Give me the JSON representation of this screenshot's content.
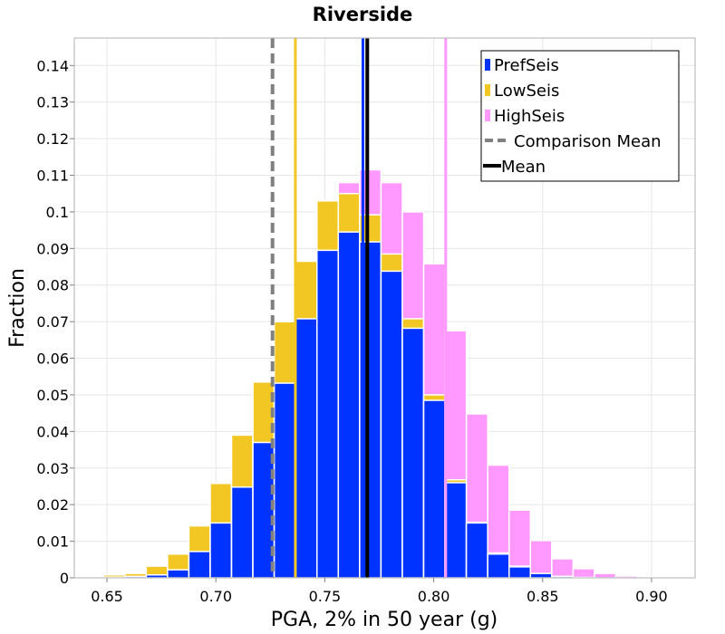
{
  "chart_data": {
    "type": "bar",
    "title": "Riverside",
    "xlabel": "PGA, 2% in 50 year (g)",
    "ylabel": "Fraction",
    "xlim": [
      0.635,
      0.92
    ],
    "ylim": [
      0,
      0.1475
    ],
    "grid": true,
    "xticks": [
      "0.65",
      "0.70",
      "0.75",
      "0.80",
      "0.85",
      "0.90"
    ],
    "yticks": [
      "0",
      "0.01",
      "0.02",
      "0.03",
      "0.04",
      "0.05",
      "0.06",
      "0.07",
      "0.08",
      "0.09",
      "0.1",
      "0.11",
      "0.12",
      "0.13",
      "0.14"
    ],
    "bin_width": 0.0098,
    "bin_centers": [
      0.6435,
      0.6533,
      0.6631,
      0.6729,
      0.6827,
      0.6925,
      0.7023,
      0.7121,
      0.7219,
      0.7317,
      0.7415,
      0.7513,
      0.7611,
      0.7709,
      0.7807,
      0.7905,
      0.8003,
      0.8101,
      0.8199,
      0.8297,
      0.8395,
      0.8493,
      0.8591,
      0.8689,
      0.8787,
      0.8885,
      0.8983,
      0.9081
    ],
    "series": [
      {
        "name": "PrefSeis",
        "color": "#0033ff",
        "values": [
          0.0,
          0.0002,
          0.0004,
          0.0008,
          0.0022,
          0.0072,
          0.015,
          0.0248,
          0.037,
          0.0532,
          0.0708,
          0.0895,
          0.0945,
          0.0918,
          0.0838,
          0.0682,
          0.0485,
          0.026,
          0.015,
          0.0065,
          0.003,
          0.0012,
          0.0004,
          0.0001,
          0.0,
          0.0,
          0.0,
          0.0
        ]
      },
      {
        "name": "LowSeis",
        "color": "#f2c623",
        "values": [
          0.0003,
          0.0008,
          0.0012,
          0.0032,
          0.0065,
          0.0142,
          0.0258,
          0.039,
          0.0535,
          0.07,
          0.0865,
          0.103,
          0.105,
          0.0992,
          0.0885,
          0.0708,
          0.05,
          0.0268,
          0.0152,
          0.0068,
          0.0032,
          0.0012,
          0.0004,
          0.0001,
          0.0,
          0.0,
          0.0,
          0.0
        ]
      },
      {
        "name": "HighSeis",
        "color": "#ff99ff",
        "values": [
          0.0,
          0.0002,
          0.0005,
          0.001,
          0.0025,
          0.0075,
          0.0158,
          0.0258,
          0.0385,
          0.0545,
          0.0722,
          0.0898,
          0.108,
          0.1115,
          0.108,
          0.1,
          0.0858,
          0.0675,
          0.0448,
          0.0308,
          0.0185,
          0.0102,
          0.0052,
          0.0025,
          0.0012,
          0.0005,
          0.0003,
          0.0001
        ]
      }
    ],
    "vertical_lines": [
      {
        "name": "Comparison Mean",
        "x": 0.726,
        "color": "#808080",
        "style": "dashed",
        "in_legend": true
      },
      {
        "name": "LowSeis mean",
        "x": 0.7365,
        "color": "#f2c623",
        "style": "solid",
        "in_legend": false
      },
      {
        "name": "PrefSeis mean",
        "x": 0.7675,
        "color": "#0033ff",
        "style": "solid",
        "in_legend": false
      },
      {
        "name": "Mean",
        "x": 0.7695,
        "color": "#000000",
        "style": "solid",
        "in_legend": true
      },
      {
        "name": "HighSeis mean",
        "x": 0.8055,
        "color": "#ff99ff",
        "style": "solid",
        "in_legend": false
      }
    ],
    "legend": {
      "placement": "top-right",
      "entries": [
        {
          "label": "PrefSeis",
          "color": "#0033ff",
          "kind": "bar"
        },
        {
          "label": "LowSeis",
          "color": "#f2c623",
          "kind": "bar"
        },
        {
          "label": "HighSeis",
          "color": "#ff99ff",
          "kind": "bar"
        },
        {
          "label": "Comparison Mean",
          "color": "#808080",
          "kind": "dashed-line"
        },
        {
          "label": "Mean",
          "color": "#000000",
          "kind": "line"
        }
      ]
    }
  }
}
